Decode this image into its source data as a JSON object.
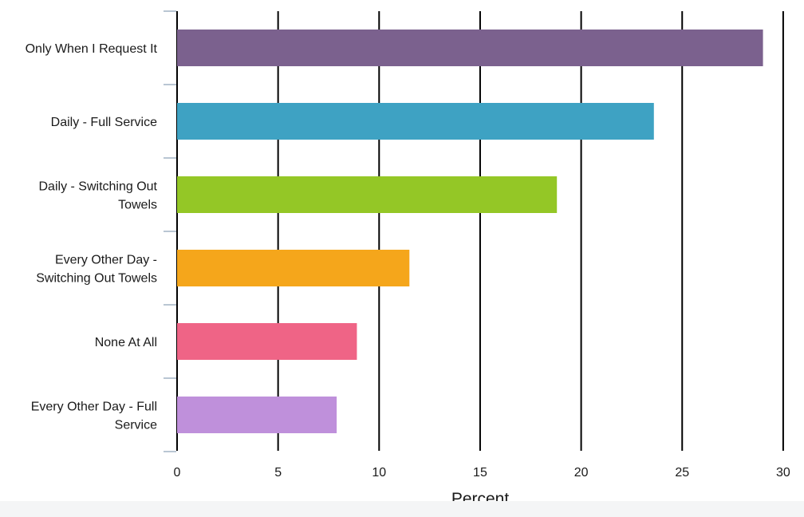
{
  "chart_data": {
    "type": "bar",
    "orientation": "horizontal",
    "categories": [
      "Only When I Request It",
      "Daily - Full Service",
      "Daily - Switching Out Towels",
      "Every Other Day - Switching Out Towels",
      "None At All",
      "Every Other Day - Full Service"
    ],
    "category_lines": [
      [
        "Only When I Request It"
      ],
      [
        "Daily - Full Service"
      ],
      [
        "Daily - Switching Out",
        "Towels"
      ],
      [
        "Every Other Day -",
        "Switching Out Towels"
      ],
      [
        "None At All"
      ],
      [
        "Every Other Day - Full",
        "Service"
      ]
    ],
    "values": [
      29.0,
      23.6,
      18.8,
      11.5,
      8.9,
      7.9
    ],
    "colors": [
      "#7b618e",
      "#3ea2c3",
      "#94c726",
      "#f5a61b",
      "#ef6486",
      "#bf90db"
    ],
    "xlabel": "Percent",
    "ylabel": "",
    "xlim": [
      0,
      30
    ],
    "ticks": [
      0,
      5,
      10,
      15,
      20,
      25,
      30
    ],
    "grid": true
  }
}
